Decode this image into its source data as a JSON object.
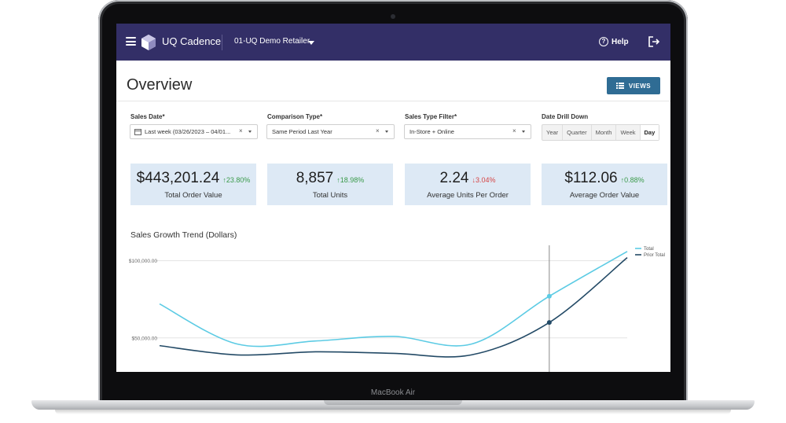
{
  "device": {
    "brand_label": "MacBook Air"
  },
  "app": {
    "name": "UQ Cadence",
    "retailer": "01-UQ Demo Retailer",
    "help_label": "Help"
  },
  "page": {
    "title": "Overview",
    "views_label": "VIEWS"
  },
  "filters": [
    {
      "label": "Sales Date*",
      "value": "Last week (03/26/2023 – 04/01...",
      "has_calendar": true
    },
    {
      "label": "Comparison Type*",
      "value": "Same Period Last Year"
    },
    {
      "label": "Sales Type Filter*",
      "value": "In-Store + Online"
    }
  ],
  "date_drill": {
    "label": "Date Drill Down",
    "options": [
      "Year",
      "Quarter",
      "Month",
      "Week",
      "Day"
    ],
    "selected": "Day"
  },
  "kpis": [
    {
      "value": "$443,201.24",
      "change": "23.80%",
      "direction": "up",
      "label": "Total Order Value"
    },
    {
      "value": "8,857",
      "change": "18.98%",
      "direction": "up",
      "label": "Total Units"
    },
    {
      "value": "2.24",
      "change": "3.04%",
      "direction": "down",
      "label": "Average Units Per Order"
    },
    {
      "value": "$112.06",
      "change": "0.88%",
      "direction": "up",
      "label": "Average Order Value"
    }
  ],
  "colors": {
    "topbar": "#332f67",
    "accent": "#2f6c94",
    "kpi_bg": "#dde9f5",
    "up": "#3a9a4a",
    "down": "#d64545",
    "total_line": "#5ccbe4",
    "prior_line": "#234a66"
  },
  "icons": {
    "menu": "hamburger-icon",
    "logo": "cube-logo-icon",
    "help": "question-circle-icon",
    "logout": "logout-icon",
    "views": "list-icon",
    "calendar": "calendar-icon"
  },
  "chart_data": {
    "type": "line",
    "title": "Sales Growth Trend (Dollars)",
    "y_ticks": [
      "$100,000.00",
      "$50,000.00"
    ],
    "y_tick_values": [
      100000,
      50000
    ],
    "ylim": [
      28000,
      112000
    ],
    "grid": true,
    "legend_position": "top-right",
    "x": [
      0,
      1,
      2,
      3,
      4,
      5,
      6
    ],
    "series": [
      {
        "name": "Total",
        "values": [
          72000,
          46000,
          48000,
          51000,
          46000,
          77000,
          106000
        ]
      },
      {
        "name": "Prior Total",
        "values": [
          45000,
          39000,
          41000,
          40000,
          39000,
          60000,
          102000
        ]
      }
    ],
    "hover_index": 5
  }
}
